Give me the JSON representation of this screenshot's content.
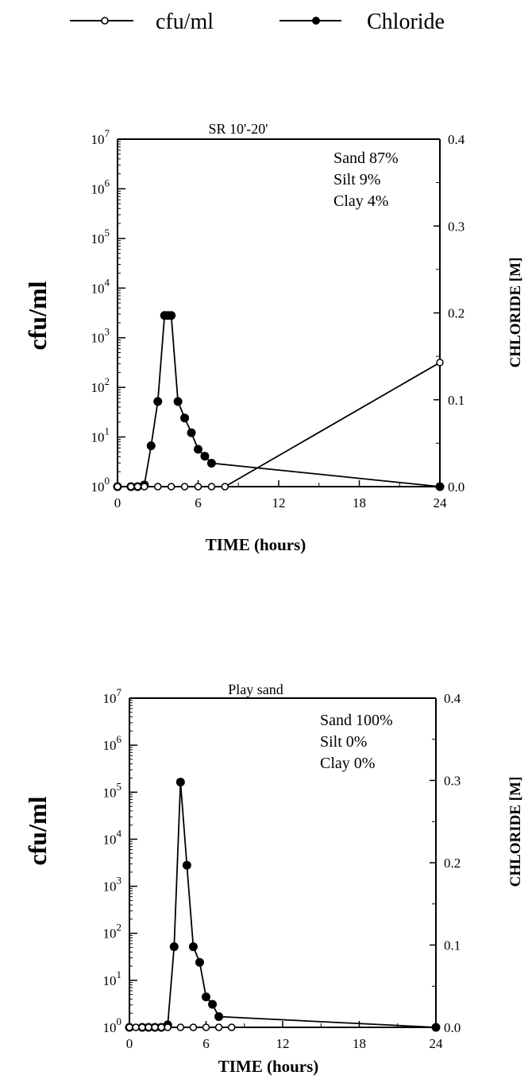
{
  "legend": [
    {
      "label": "cfu/ml",
      "marker": "open-circle"
    },
    {
      "label": "Chloride",
      "marker": "filled-circle"
    }
  ],
  "chart_data": [
    {
      "type": "line",
      "title": "SR  10'-20'",
      "composition": [
        "Sand 87%",
        "Silt 9%",
        "Clay 4%"
      ],
      "xlabel": "TIME  (hours)",
      "ylabel_left": "cfu/ml",
      "ylabel_right": "CHLORIDE [M]",
      "xlim": [
        0,
        24
      ],
      "xticks": [
        0,
        6,
        12,
        18,
        24
      ],
      "ylim_left": [
        0,
        7
      ],
      "yscale_left": "log10",
      "yticks_left": [
        {
          "value": 0,
          "base": "10",
          "exp": "0"
        },
        {
          "value": 1,
          "base": "10",
          "exp": "1"
        },
        {
          "value": 2,
          "base": "10",
          "exp": "2"
        },
        {
          "value": 3,
          "base": "10",
          "exp": "3"
        },
        {
          "value": 4,
          "base": "10",
          "exp": "4"
        },
        {
          "value": 5,
          "base": "10",
          "exp": "5"
        },
        {
          "value": 6,
          "base": "10",
          "exp": "6"
        },
        {
          "value": 7,
          "base": "10",
          "exp": "7"
        }
      ],
      "ylim_right": [
        0,
        0.4
      ],
      "yticks_right": [
        "0.0",
        "0.1",
        "0.2",
        "0.3",
        "0.4"
      ],
      "series": [
        {
          "name": "cfu/ml",
          "axis": "left",
          "marker": "open-circle",
          "x": [
            0,
            1,
            1.5,
            2,
            3,
            4,
            5,
            6,
            7,
            8,
            24
          ],
          "y": [
            0,
            0,
            0,
            0,
            0,
            0,
            0,
            0,
            0,
            0,
            2.5
          ]
        },
        {
          "name": "Chloride",
          "axis": "right",
          "marker": "filled-circle",
          "x": [
            0,
            1,
            1.5,
            2,
            2.5,
            3,
            3.5,
            3.75,
            4,
            4.5,
            5,
            5.5,
            6,
            6.5,
            7,
            24
          ],
          "y": [
            0,
            0,
            0,
            0.002,
            0.047,
            0.098,
            0.197,
            0.197,
            0.197,
            0.098,
            0.079,
            0.062,
            0.043,
            0.035,
            0.027,
            0.0
          ]
        }
      ]
    },
    {
      "type": "line",
      "title": "Play sand",
      "composition": [
        "Sand 100%",
        "Silt 0%",
        "Clay 0%"
      ],
      "xlabel": "TIME  (hours)",
      "ylabel_left": "cfu/ml",
      "ylabel_right": "CHLORIDE [M]",
      "xlim": [
        0,
        24
      ],
      "xticks": [
        0,
        6,
        12,
        18,
        24
      ],
      "ylim_left": [
        0,
        7
      ],
      "yscale_left": "log10",
      "yticks_left": [
        {
          "value": 0,
          "base": "10",
          "exp": "0"
        },
        {
          "value": 1,
          "base": "10",
          "exp": "1"
        },
        {
          "value": 2,
          "base": "10",
          "exp": "2"
        },
        {
          "value": 3,
          "base": "10",
          "exp": "3"
        },
        {
          "value": 4,
          "base": "10",
          "exp": "4"
        },
        {
          "value": 5,
          "base": "10",
          "exp": "5"
        },
        {
          "value": 6,
          "base": "10",
          "exp": "6"
        },
        {
          "value": 7,
          "base": "10",
          "exp": "7"
        }
      ],
      "ylim_right": [
        0,
        0.4
      ],
      "yticks_right": [
        "0.0",
        "0.1",
        "0.2",
        "0.3",
        "0.4"
      ],
      "series": [
        {
          "name": "cfu/ml",
          "axis": "left",
          "marker": "open-circle",
          "x": [
            0,
            0.5,
            1,
            1.5,
            2,
            2.5,
            3,
            4,
            5,
            6,
            7,
            8
          ],
          "y": [
            0,
            0,
            0,
            0,
            0,
            0,
            0,
            0,
            0,
            0,
            0,
            0
          ]
        },
        {
          "name": "Chloride",
          "axis": "right",
          "marker": "filled-circle",
          "x": [
            0,
            1,
            1.5,
            2,
            2.5,
            3,
            3.5,
            4,
            4.5,
            5,
            5.5,
            6,
            6.5,
            7,
            24
          ],
          "y": [
            0,
            0,
            0,
            0,
            0,
            0.003,
            0.098,
            0.298,
            0.197,
            0.098,
            0.079,
            0.037,
            0.028,
            0.013,
            0.0
          ]
        }
      ]
    }
  ]
}
